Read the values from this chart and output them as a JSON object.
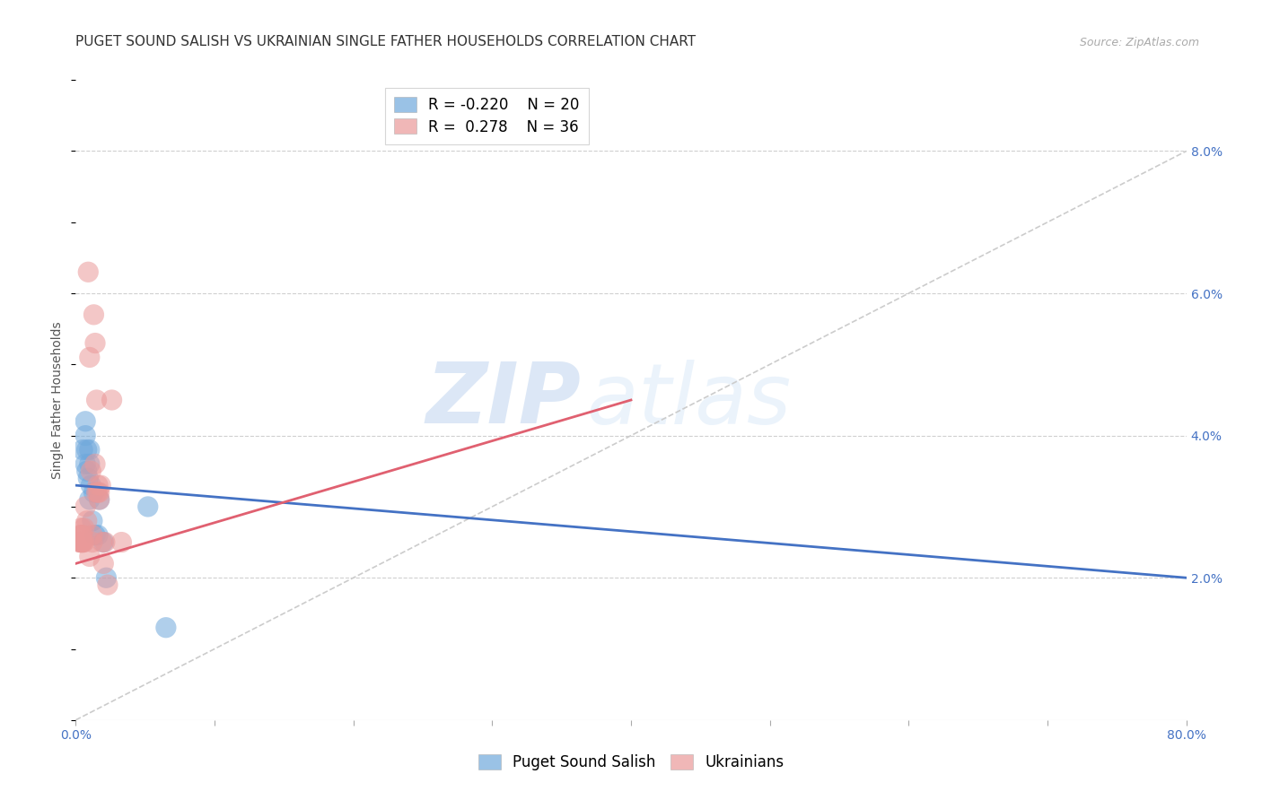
{
  "title": "PUGET SOUND SALISH VS UKRAINIAN SINGLE FATHER HOUSEHOLDS CORRELATION CHART",
  "source": "Source: ZipAtlas.com",
  "ylabel": "Single Father Households",
  "watermark_zip": "ZIP",
  "watermark_atlas": "atlas",
  "xlim": [
    0.0,
    0.8
  ],
  "ylim": [
    0.0,
    0.09
  ],
  "yticks": [
    0.02,
    0.04,
    0.06,
    0.08
  ],
  "ytick_labels": [
    "2.0%",
    "4.0%",
    "6.0%",
    "8.0%"
  ],
  "xtick_positions": [
    0.0,
    0.1,
    0.2,
    0.3,
    0.4,
    0.5,
    0.6,
    0.7,
    0.8
  ],
  "blue_R": -0.22,
  "blue_N": 20,
  "pink_R": 0.278,
  "pink_N": 36,
  "blue_color": "#6fa8dc",
  "pink_color": "#ea9999",
  "blue_line_color": "#4472c4",
  "pink_line_color": "#e06070",
  "diagonal_color": "#cccccc",
  "blue_line": [
    [
      0.0,
      0.033
    ],
    [
      0.8,
      0.02
    ]
  ],
  "pink_line": [
    [
      0.0,
      0.022
    ],
    [
      0.4,
      0.045
    ]
  ],
  "blue_scatter": [
    [
      0.005,
      0.038
    ],
    [
      0.007,
      0.042
    ],
    [
      0.007,
      0.04
    ],
    [
      0.007,
      0.036
    ],
    [
      0.008,
      0.038
    ],
    [
      0.008,
      0.035
    ],
    [
      0.009,
      0.034
    ],
    [
      0.01,
      0.031
    ],
    [
      0.01,
      0.038
    ],
    [
      0.01,
      0.036
    ],
    [
      0.011,
      0.033
    ],
    [
      0.012,
      0.028
    ],
    [
      0.013,
      0.032
    ],
    [
      0.014,
      0.026
    ],
    [
      0.016,
      0.026
    ],
    [
      0.017,
      0.031
    ],
    [
      0.02,
      0.025
    ],
    [
      0.022,
      0.02
    ],
    [
      0.052,
      0.03
    ],
    [
      0.065,
      0.013
    ]
  ],
  "pink_scatter": [
    [
      0.003,
      0.025
    ],
    [
      0.003,
      0.026
    ],
    [
      0.003,
      0.025
    ],
    [
      0.004,
      0.027
    ],
    [
      0.004,
      0.026
    ],
    [
      0.004,
      0.025
    ],
    [
      0.004,
      0.025
    ],
    [
      0.005,
      0.025
    ],
    [
      0.005,
      0.026
    ],
    [
      0.005,
      0.025
    ],
    [
      0.006,
      0.027
    ],
    [
      0.006,
      0.025
    ],
    [
      0.007,
      0.03
    ],
    [
      0.008,
      0.028
    ],
    [
      0.009,
      0.063
    ],
    [
      0.01,
      0.023
    ],
    [
      0.01,
      0.051
    ],
    [
      0.011,
      0.035
    ],
    [
      0.012,
      0.025
    ],
    [
      0.012,
      0.026
    ],
    [
      0.013,
      0.057
    ],
    [
      0.014,
      0.036
    ],
    [
      0.014,
      0.053
    ],
    [
      0.015,
      0.045
    ],
    [
      0.015,
      0.032
    ],
    [
      0.016,
      0.033
    ],
    [
      0.016,
      0.032
    ],
    [
      0.017,
      0.031
    ],
    [
      0.017,
      0.032
    ],
    [
      0.018,
      0.033
    ],
    [
      0.019,
      0.025
    ],
    [
      0.02,
      0.022
    ],
    [
      0.021,
      0.025
    ],
    [
      0.023,
      0.019
    ],
    [
      0.026,
      0.045
    ],
    [
      0.033,
      0.025
    ]
  ],
  "title_fontsize": 11,
  "source_fontsize": 9,
  "axis_label_fontsize": 10,
  "tick_fontsize": 10,
  "legend_fontsize": 12,
  "tick_color": "#4472c4",
  "background_color": "#ffffff",
  "grid_color": "#d0d0d0"
}
